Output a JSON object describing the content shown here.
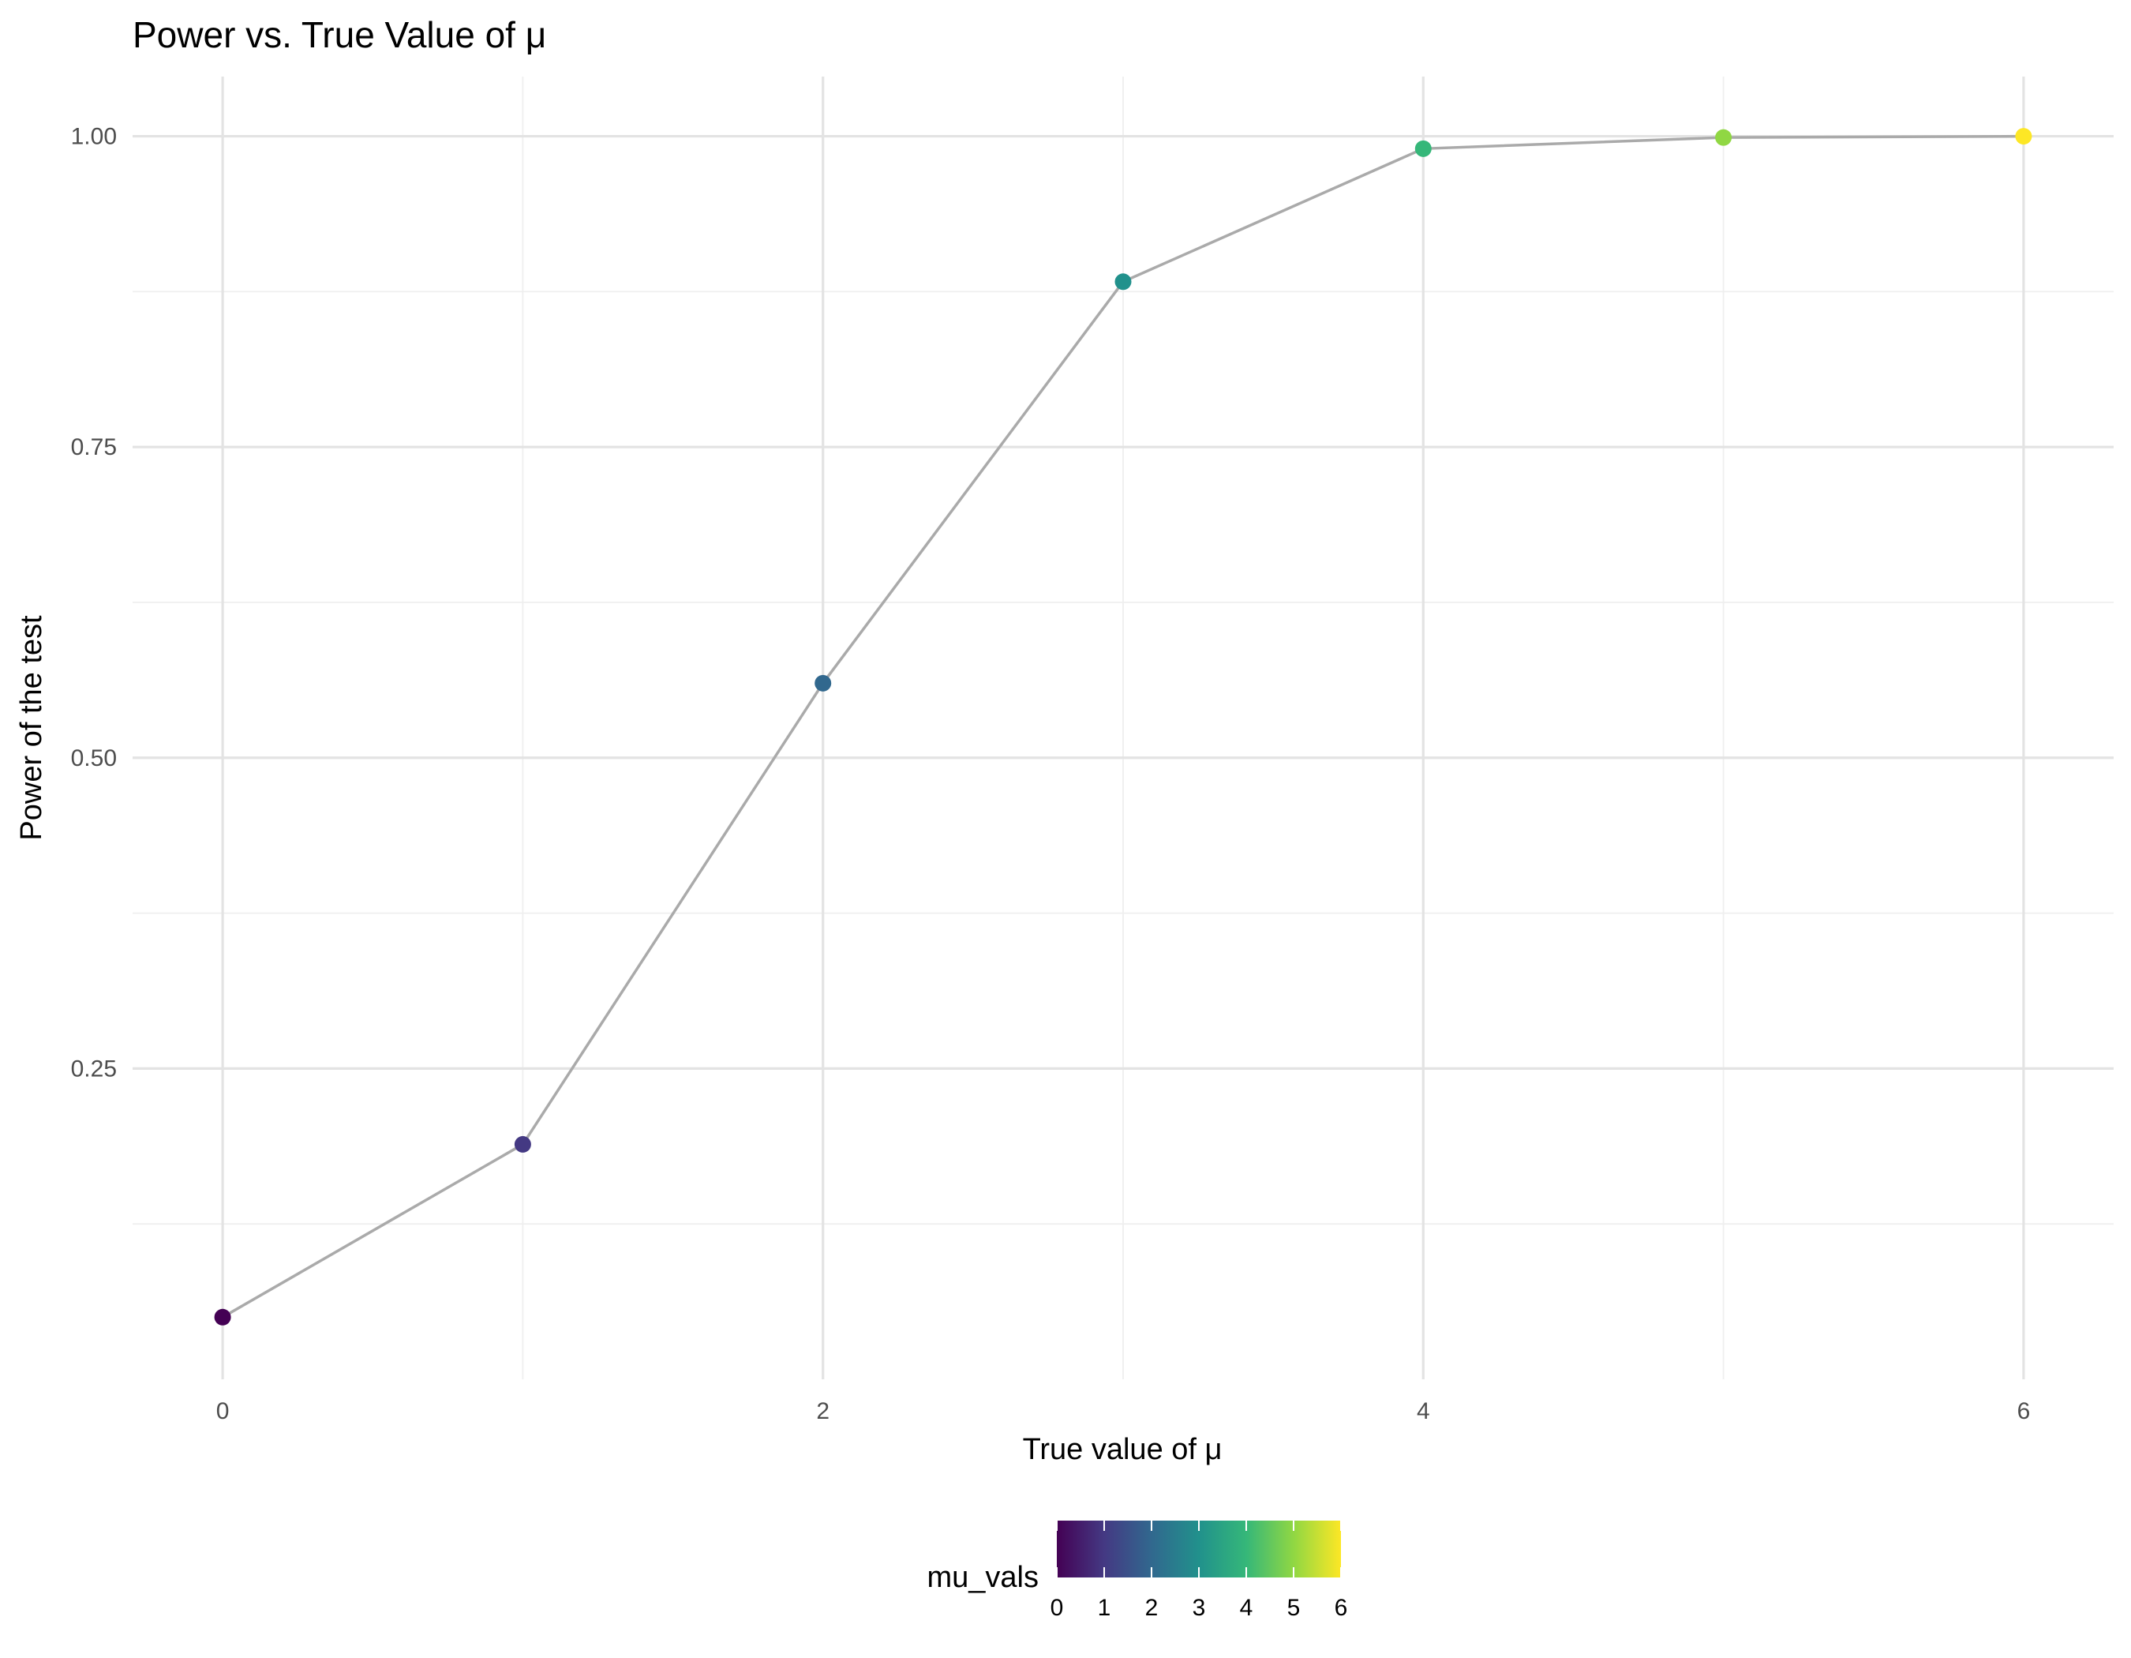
{
  "chart_data": {
    "type": "line",
    "title": "Power vs. True Value of μ",
    "xlabel": "True value of μ",
    "ylabel": "Power of the test",
    "x": [
      0,
      1,
      2,
      3,
      4,
      5,
      6
    ],
    "series": [
      {
        "values": [
          0.05,
          0.189,
          0.56,
          0.883,
          0.99,
          0.999,
          1.0
        ]
      }
    ],
    "xlim": [
      -0.3,
      6.3
    ],
    "ylim": [
      0.0,
      1.048
    ],
    "xticks": [
      "0",
      "2",
      "4",
      "6"
    ],
    "yticks": [
      "0.25",
      "0.50",
      "0.75",
      "1.00"
    ],
    "grid": true,
    "line_color": "#aaaaaa",
    "legend": {
      "title": "mu_vals",
      "position": "bottom",
      "type": "colorbar",
      "palette": "viridis",
      "ticks": [
        "0",
        "1",
        "2",
        "3",
        "4",
        "5",
        "6"
      ],
      "colors": [
        "#440154",
        "#443983",
        "#31688e",
        "#21918c",
        "#35b779",
        "#90d743",
        "#fde725"
      ]
    }
  }
}
